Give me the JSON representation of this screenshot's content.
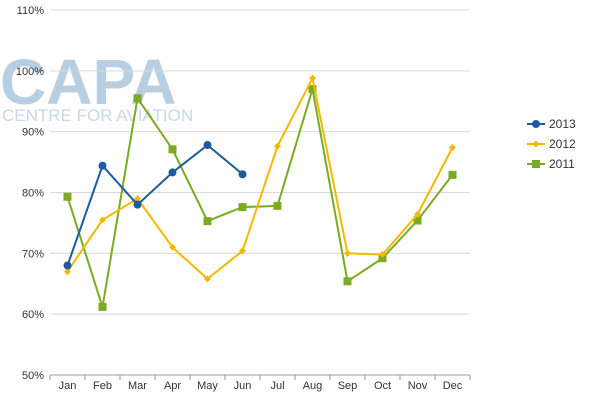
{
  "watermark": {
    "brand": "CAPA",
    "tagline": "CENTRE FOR AVIATION"
  },
  "chart_data": {
    "type": "line",
    "categories": [
      "Jan",
      "Feb",
      "Mar",
      "Apr",
      "May",
      "Jun",
      "Jul",
      "Aug",
      "Sep",
      "Oct",
      "Nov",
      "Dec"
    ],
    "y_ticks": [
      "50%",
      "60%",
      "70%",
      "80%",
      "90%",
      "100%",
      "110%"
    ],
    "ylim": [
      50,
      110
    ],
    "grid": true,
    "legend_position": "right",
    "series": [
      {
        "name": "2013",
        "color": "#1f5a9e",
        "marker": "circle",
        "values": [
          68,
          84.4,
          78,
          83.3,
          87.8,
          83,
          null,
          null,
          null,
          null,
          null,
          null
        ]
      },
      {
        "name": "2012",
        "color": "#f5b800",
        "marker": "diamond",
        "values": [
          67,
          75.5,
          79,
          71,
          65.8,
          70.4,
          87.6,
          98.8,
          70,
          69.8,
          76.4,
          87.4
        ]
      },
      {
        "name": "2011",
        "color": "#7aab22",
        "marker": "square",
        "values": [
          79.3,
          61.2,
          95.5,
          87.1,
          75.3,
          77.6,
          77.8,
          97,
          65.4,
          69.2,
          75.4,
          82.9
        ]
      }
    ]
  }
}
